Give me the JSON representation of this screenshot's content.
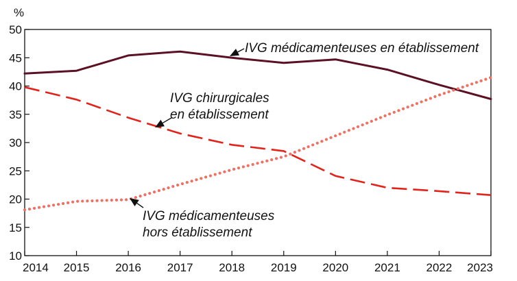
{
  "chart_data": {
    "type": "line",
    "ylabel": "%",
    "ylim": [
      10,
      50
    ],
    "yticks": [
      10,
      15,
      20,
      25,
      30,
      35,
      40,
      45,
      50
    ],
    "x": [
      2014,
      2015,
      2016,
      2017,
      2018,
      2019,
      2020,
      2021,
      2022,
      2023
    ],
    "xlim": [
      2014,
      2023
    ],
    "grid": false,
    "legend": "none",
    "series": [
      {
        "key": "med_etab",
        "values": [
          42.2,
          42.7,
          45.4,
          46.1,
          45.0,
          44.1,
          44.7,
          42.9,
          40.2,
          37.7
        ],
        "color": "#5b1024",
        "style": "solid"
      },
      {
        "key": "chir_etab",
        "values": [
          39.8,
          37.6,
          34.4,
          31.6,
          29.6,
          28.5,
          24.1,
          22.0,
          21.4,
          20.7
        ],
        "color": "#e2231a",
        "style": "dashed"
      },
      {
        "key": "med_hors",
        "values": [
          18.1,
          19.6,
          19.9,
          22.6,
          25.2,
          27.5,
          31.2,
          34.9,
          38.4,
          41.5
        ],
        "color": "#ee7163",
        "style": "dotted"
      }
    ],
    "annotations": [
      {
        "key": "med_etab",
        "lines": [
          "IVG médicamenteuses en établissement"
        ]
      },
      {
        "key": "chir_etab",
        "lines": [
          "IVG chirurgicales",
          "en établissement"
        ]
      },
      {
        "key": "med_hors",
        "lines": [
          "IVG médicamenteuses",
          "hors établissement"
        ]
      }
    ]
  }
}
